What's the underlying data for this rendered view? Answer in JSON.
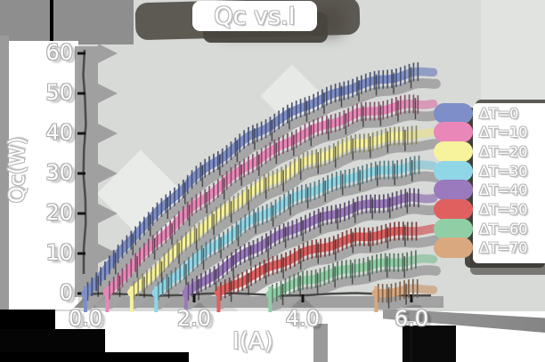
{
  "title": "Qc vs.I",
  "axes": {
    "x": {
      "label": "I(A)",
      "tick_labels": [
        "0.0",
        "2.0",
        "4.0",
        "6.0"
      ],
      "tick_values": [
        0,
        2,
        4,
        6
      ]
    },
    "y": {
      "label": "Qc(W)",
      "tick_labels": [
        "0",
        "10",
        "20",
        "30",
        "40",
        "50",
        "60"
      ],
      "tick_values": [
        0,
        10,
        20,
        30,
        40,
        50,
        60
      ]
    }
  },
  "legend": {
    "position": "right",
    "items": [
      {
        "label": "ΔT=0",
        "color": "#7d8ec8"
      },
      {
        "label": "ΔT=10",
        "color": "#e987b8"
      },
      {
        "label": "ΔT=20",
        "color": "#f7f29c"
      },
      {
        "label": "ΔT=30",
        "color": "#8fd7e7"
      },
      {
        "label": "ΔT=40",
        "color": "#9a79bd"
      },
      {
        "label": "ΔT=50",
        "color": "#e06060"
      },
      {
        "label": "ΔT=60",
        "color": "#90cfa6"
      },
      {
        "label": "ΔT=70",
        "color": "#d9a87e"
      }
    ]
  },
  "chart_data": {
    "type": "line",
    "title": "Qc vs.I",
    "xlabel": "I(A)",
    "ylabel": "Qc(W)",
    "xlim": [
      0,
      6.7
    ],
    "ylim": [
      0,
      62
    ],
    "grid": false,
    "error_bars": true,
    "legend_position": "right",
    "series": [
      {
        "name": "ΔT=0",
        "color": "#7d8ec8",
        "x": [
          0,
          1,
          2,
          3,
          4,
          5,
          6,
          6.4
        ],
        "y": [
          0,
          16,
          29,
          39,
          46.7,
          52,
          55,
          55.5
        ]
      },
      {
        "name": "ΔT=10",
        "color": "#e987b8",
        "x": [
          0.4,
          1,
          2,
          3,
          4,
          5,
          6,
          6.4
        ],
        "y": [
          0,
          9,
          21.9,
          32.2,
          39.9,
          44.9,
          47.3,
          47.5
        ]
      },
      {
        "name": "ΔT=20",
        "color": "#f7f29c",
        "x": [
          0.85,
          2,
          3,
          4,
          5,
          6,
          6.4
        ],
        "y": [
          0,
          14.9,
          25,
          32.5,
          37.5,
          39.8,
          40
        ]
      },
      {
        "name": "ΔT=30",
        "color": "#8fd7e7",
        "x": [
          1.3,
          2,
          3,
          4,
          5,
          6,
          6.4
        ],
        "y": [
          0,
          8.2,
          17.8,
          24.9,
          29.6,
          31.8,
          32
        ]
      },
      {
        "name": "ΔT=40",
        "color": "#9a79bd",
        "x": [
          1.85,
          3,
          4,
          5,
          6,
          6.4
        ],
        "y": [
          0,
          10.6,
          17.3,
          21.7,
          23.8,
          24
        ]
      },
      {
        "name": "ΔT=50",
        "color": "#e06060",
        "x": [
          2.45,
          3,
          4,
          5,
          6,
          6.4
        ],
        "y": [
          0,
          4.1,
          10.1,
          14,
          15.8,
          16
        ]
      },
      {
        "name": "ΔT=60",
        "color": "#90cfa6",
        "x": [
          3.4,
          4,
          5,
          6,
          6.4
        ],
        "y": [
          0,
          3.1,
          6.6,
          8.35,
          8.5
        ]
      },
      {
        "name": "ΔT=70",
        "color": "#d9a87e",
        "x": [
          5.35,
          6,
          6.4
        ],
        "y": [
          0,
          1.0,
          1.2
        ]
      }
    ]
  },
  "style": {
    "background": "#d7dad7",
    "shadow_gray": "#9b9b9b",
    "axis_color": "#4a4a4a",
    "text_color": "#ffffff"
  }
}
